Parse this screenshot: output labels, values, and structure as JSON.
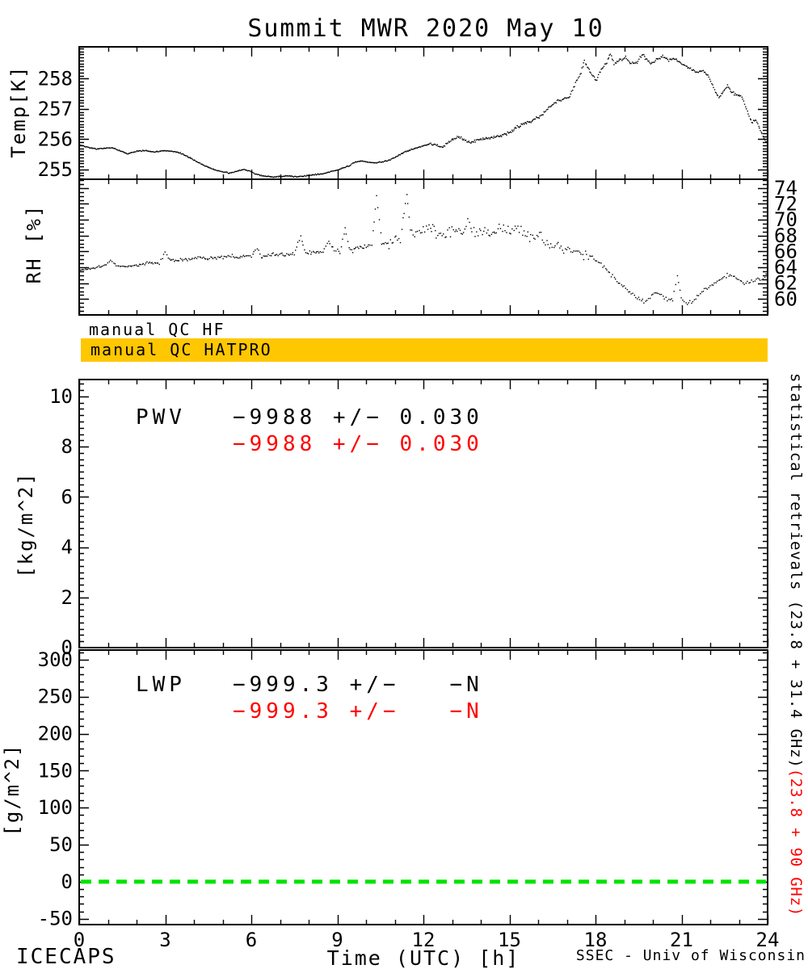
{
  "title": "Summit MWR 2020 May 10",
  "colors": {
    "foreground": "#000000",
    "red": "#ff0000",
    "qc_bar": "#ffc700",
    "background": "#ffffff"
  },
  "qc": {
    "hf_label": "manual QC HF",
    "hatpro_label": "manual QC HATPRO"
  },
  "annotations": {
    "pwv": {
      "name": "PWV",
      "line1": "−9988 +/− 0.030",
      "line2": "−9988 +/− 0.030"
    },
    "lwp": {
      "name": "LWP",
      "line1": "−999.3 +/−   −N",
      "line2": "−999.3 +/−   −N"
    }
  },
  "right_label": {
    "black": "statistical retrievals (23.8 + 31.4 GHz)",
    "red": "(23.8 + 90 GHz)"
  },
  "footer": {
    "project": "ICECAPS",
    "credit": "SSEC - Univ of Wisconsin"
  },
  "chart_data": [
    {
      "id": "temp",
      "type": "scatter",
      "title": "Summit MWR 2020 May 10",
      "ylabel": "Temp[K]",
      "ylim": [
        254.68,
        259.05
      ],
      "yticks": [
        255,
        256,
        257,
        258
      ],
      "yminor": 0.1,
      "ytick_side": "left",
      "xlim": [
        0,
        24
      ],
      "xmajor": 3,
      "xminor": 1,
      "series": [
        {
          "name": "temperature",
          "color": "#000000",
          "seed": 42,
          "step": 1.1,
          "jitter": 0.6,
          "noise_steps": [
            [
              0,
              0.02
            ],
            [
              12.2,
              0.05
            ],
            [
              14.5,
              0.06
            ],
            [
              21,
              0.04
            ],
            [
              22.8,
              0.05
            ]
          ],
          "points": [
            [
              0,
              255.82
            ],
            [
              0.3,
              255.74
            ],
            [
              0.6,
              255.68
            ],
            [
              0.9,
              255.7
            ],
            [
              1.15,
              255.72
            ],
            [
              1.4,
              255.63
            ],
            [
              1.7,
              255.52
            ],
            [
              2,
              255.6
            ],
            [
              2.3,
              255.63
            ],
            [
              2.6,
              255.58
            ],
            [
              2.9,
              255.62
            ],
            [
              3.2,
              255.6
            ],
            [
              3.5,
              255.56
            ],
            [
              3.8,
              255.42
            ],
            [
              4.1,
              255.26
            ],
            [
              4.4,
              255.12
            ],
            [
              4.7,
              255.0
            ],
            [
              5,
              254.92
            ],
            [
              5.25,
              254.88
            ],
            [
              5.5,
              254.95
            ],
            [
              5.75,
              255.0
            ],
            [
              5.95,
              254.95
            ],
            [
              6.15,
              254.85
            ],
            [
              6.4,
              254.79
            ],
            [
              6.7,
              254.76
            ],
            [
              7,
              254.77
            ],
            [
              7.3,
              254.79
            ],
            [
              7.6,
              254.76
            ],
            [
              7.9,
              254.79
            ],
            [
              8.2,
              254.83
            ],
            [
              8.5,
              254.86
            ],
            [
              8.8,
              254.93
            ],
            [
              9.1,
              255.02
            ],
            [
              9.4,
              255.12
            ],
            [
              9.6,
              255.24
            ],
            [
              9.85,
              255.28
            ],
            [
              10.1,
              255.24
            ],
            [
              10.35,
              255.22
            ],
            [
              10.6,
              255.26
            ],
            [
              10.85,
              255.32
            ],
            [
              11.1,
              255.45
            ],
            [
              11.4,
              255.6
            ],
            [
              11.7,
              255.7
            ],
            [
              12,
              255.78
            ],
            [
              12.25,
              255.86
            ],
            [
              12.45,
              255.8
            ],
            [
              12.65,
              255.72
            ],
            [
              12.85,
              255.88
            ],
            [
              13.05,
              256.02
            ],
            [
              13.25,
              256.1
            ],
            [
              13.45,
              255.96
            ],
            [
              13.65,
              255.88
            ],
            [
              13.85,
              255.96
            ],
            [
              14.1,
              256.02
            ],
            [
              14.4,
              256.06
            ],
            [
              14.7,
              256.12
            ],
            [
              15,
              256.22
            ],
            [
              15.3,
              256.42
            ],
            [
              15.6,
              256.52
            ],
            [
              15.9,
              256.68
            ],
            [
              16.1,
              256.78
            ],
            [
              16.3,
              256.95
            ],
            [
              16.5,
              257.15
            ],
            [
              16.7,
              257.28
            ],
            [
              16.9,
              257.3
            ],
            [
              17.1,
              257.42
            ],
            [
              17.3,
              257.85
            ],
            [
              17.5,
              258.2
            ],
            [
              17.62,
              258.6
            ],
            [
              17.75,
              258.3
            ],
            [
              17.9,
              258.1
            ],
            [
              18.05,
              257.95
            ],
            [
              18.2,
              258.3
            ],
            [
              18.4,
              258.55
            ],
            [
              18.52,
              258.85
            ],
            [
              18.65,
              258.5
            ],
            [
              18.85,
              258.6
            ],
            [
              19.05,
              258.72
            ],
            [
              19.25,
              258.5
            ],
            [
              19.45,
              258.55
            ],
            [
              19.65,
              258.8
            ],
            [
              19.8,
              258.62
            ],
            [
              19.95,
              258.5
            ],
            [
              20.15,
              258.65
            ],
            [
              20.35,
              258.75
            ],
            [
              20.55,
              258.6
            ],
            [
              20.75,
              258.66
            ],
            [
              20.95,
              258.55
            ],
            [
              21.15,
              258.42
            ],
            [
              21.35,
              258.3
            ],
            [
              21.55,
              258.22
            ],
            [
              21.75,
              258.26
            ],
            [
              21.95,
              258.05
            ],
            [
              22.15,
              257.62
            ],
            [
              22.3,
              257.38
            ],
            [
              22.45,
              257.55
            ],
            [
              22.6,
              257.78
            ],
            [
              22.75,
              257.56
            ],
            [
              22.9,
              257.46
            ],
            [
              23.1,
              257.4
            ],
            [
              23.3,
              256.9
            ],
            [
              23.45,
              256.56
            ],
            [
              23.6,
              256.66
            ],
            [
              23.75,
              256.3
            ],
            [
              23.9,
              255.96
            ],
            [
              24,
              255.92
            ]
          ]
        }
      ]
    },
    {
      "id": "rh",
      "type": "scatter",
      "ylabel": "RH [%]",
      "ylim": [
        58,
        75.1
      ],
      "yticks": [
        60,
        62,
        64,
        66,
        68,
        70,
        72,
        74
      ],
      "yminor": 0.5,
      "ytick_side": "right",
      "xlim": [
        0,
        24
      ],
      "xmajor": 3,
      "xminor": 1,
      "series": [
        {
          "name": "relative-humidity",
          "color": "#000000",
          "seed": 1337,
          "step": 1.6,
          "jitter": 0.9,
          "noise_steps": [
            [
              0,
              0.15
            ],
            [
              2,
              0.25
            ],
            [
              6,
              0.3
            ],
            [
              9,
              0.45
            ],
            [
              10.8,
              0.8
            ],
            [
              12.3,
              1.0
            ],
            [
              15.8,
              0.9
            ],
            [
              18,
              0.35
            ],
            [
              19,
              0.25
            ],
            [
              21.5,
              0.3
            ]
          ],
          "points": [
            [
              0,
              63.6
            ],
            [
              0.3,
              63.8
            ],
            [
              0.6,
              64.0
            ],
            [
              0.9,
              64.3
            ],
            [
              1.1,
              64.8
            ],
            [
              1.3,
              64.2
            ],
            [
              1.6,
              64.1
            ],
            [
              1.9,
              64.2
            ],
            [
              2.2,
              64.4
            ],
            [
              2.5,
              64.6
            ],
            [
              2.8,
              64.5
            ],
            [
              3,
              65.9
            ],
            [
              3.15,
              64.9
            ],
            [
              3.4,
              64.8
            ],
            [
              3.7,
              65.0
            ],
            [
              4,
              65.1
            ],
            [
              4.2,
              65.3
            ],
            [
              4.5,
              65.1
            ],
            [
              4.8,
              65.2
            ],
            [
              5.1,
              65.3
            ],
            [
              5.3,
              65.45
            ],
            [
              5.55,
              65.2
            ],
            [
              5.8,
              65.5
            ],
            [
              6,
              65.4
            ],
            [
              6.2,
              66.2
            ],
            [
              6.35,
              65.4
            ],
            [
              6.6,
              65.5
            ],
            [
              6.9,
              65.6
            ],
            [
              7.2,
              65.5
            ],
            [
              7.5,
              65.7
            ],
            [
              7.72,
              67.8
            ],
            [
              7.9,
              65.8
            ],
            [
              8.2,
              65.9
            ],
            [
              8.5,
              66.0
            ],
            [
              8.7,
              67.3
            ],
            [
              8.9,
              66.0
            ],
            [
              9.1,
              66.1
            ],
            [
              9.28,
              68.9
            ],
            [
              9.45,
              66.2
            ],
            [
              9.7,
              66.3
            ],
            [
              10,
              66.5
            ],
            [
              10.2,
              67.0
            ],
            [
              10.38,
              72.9
            ],
            [
              10.55,
              67.0
            ],
            [
              10.8,
              66.8
            ],
            [
              11,
              67.2
            ],
            [
              11.2,
              67.4
            ],
            [
              11.42,
              73.3
            ],
            [
              11.6,
              68.0
            ],
            [
              11.8,
              68.4
            ],
            [
              12,
              68.6
            ],
            [
              12.2,
              69.0
            ],
            [
              12.5,
              68.3
            ],
            [
              12.7,
              68.0
            ],
            [
              12.9,
              68.4
            ],
            [
              13.1,
              68.2
            ],
            [
              13.4,
              69.0
            ],
            [
              13.6,
              69.4
            ],
            [
              13.8,
              68.8
            ],
            [
              14,
              68.4
            ],
            [
              14.2,
              68.3
            ],
            [
              14.5,
              68.9
            ],
            [
              14.7,
              69.6
            ],
            [
              14.9,
              69.0
            ],
            [
              15.1,
              68.6
            ],
            [
              15.3,
              69.3
            ],
            [
              15.5,
              68.4
            ],
            [
              15.7,
              67.9
            ],
            [
              15.9,
              68.3
            ],
            [
              16.1,
              67.6
            ],
            [
              16.3,
              67.2
            ],
            [
              16.5,
              66.6
            ],
            [
              16.7,
              66.9
            ],
            [
              16.9,
              66.4
            ],
            [
              17.1,
              66.2
            ],
            [
              17.3,
              65.8
            ],
            [
              17.5,
              65.4
            ],
            [
              17.7,
              65.8
            ],
            [
              17.9,
              65.2
            ],
            [
              18.1,
              64.6
            ],
            [
              18.3,
              63.9
            ],
            [
              18.5,
              63.2
            ],
            [
              18.7,
              62.4
            ],
            [
              18.9,
              61.8
            ],
            [
              19.1,
              61.2
            ],
            [
              19.3,
              60.6
            ],
            [
              19.5,
              60.1
            ],
            [
              19.7,
              59.7
            ],
            [
              19.9,
              60.3
            ],
            [
              20.1,
              60.9
            ],
            [
              20.3,
              60.4
            ],
            [
              20.5,
              60.0
            ],
            [
              20.7,
              59.9
            ],
            [
              20.85,
              62.9
            ],
            [
              21,
              60.2
            ],
            [
              21.2,
              59.4
            ],
            [
              21.4,
              59.8
            ],
            [
              21.6,
              60.6
            ],
            [
              21.8,
              61.2
            ],
            [
              22,
              61.7
            ],
            [
              22.2,
              62.1
            ],
            [
              22.4,
              62.6
            ],
            [
              22.6,
              63.1
            ],
            [
              22.8,
              63.0
            ],
            [
              23,
              62.4
            ],
            [
              23.2,
              61.9
            ],
            [
              23.4,
              62.2
            ],
            [
              23.6,
              62.6
            ],
            [
              23.8,
              62.4
            ],
            [
              24,
              63.2
            ]
          ]
        }
      ]
    },
    {
      "id": "pwv",
      "type": "scatter",
      "ylabel": "[kg/m^2]",
      "ylim": [
        0,
        10.67
      ],
      "yticks": [
        0,
        2,
        4,
        6,
        8,
        10
      ],
      "yminor": 0.25,
      "ytick_side": "left",
      "xlim": [
        0,
        24
      ],
      "xmajor": 3,
      "xminor": 1,
      "series": []
    },
    {
      "id": "lwp",
      "type": "scatter",
      "ylabel": "[g/m^2]",
      "ylim": [
        -58,
        313
      ],
      "yticks": [
        -50,
        0,
        50,
        100,
        150,
        200,
        250,
        300
      ],
      "yminor": 10,
      "ytick_side": "left",
      "xlim": [
        0,
        24
      ],
      "xmajor": 3,
      "xminor": 1,
      "xtick_labels": [
        "0",
        "3",
        "6",
        "9",
        "12",
        "15",
        "18",
        "21",
        "24"
      ],
      "xlabel": "Time (UTC) [h]",
      "series": [],
      "zero_line": {
        "value": 0,
        "color": "#00e400",
        "dash": [
          13,
          9
        ],
        "width": 5
      }
    }
  ]
}
